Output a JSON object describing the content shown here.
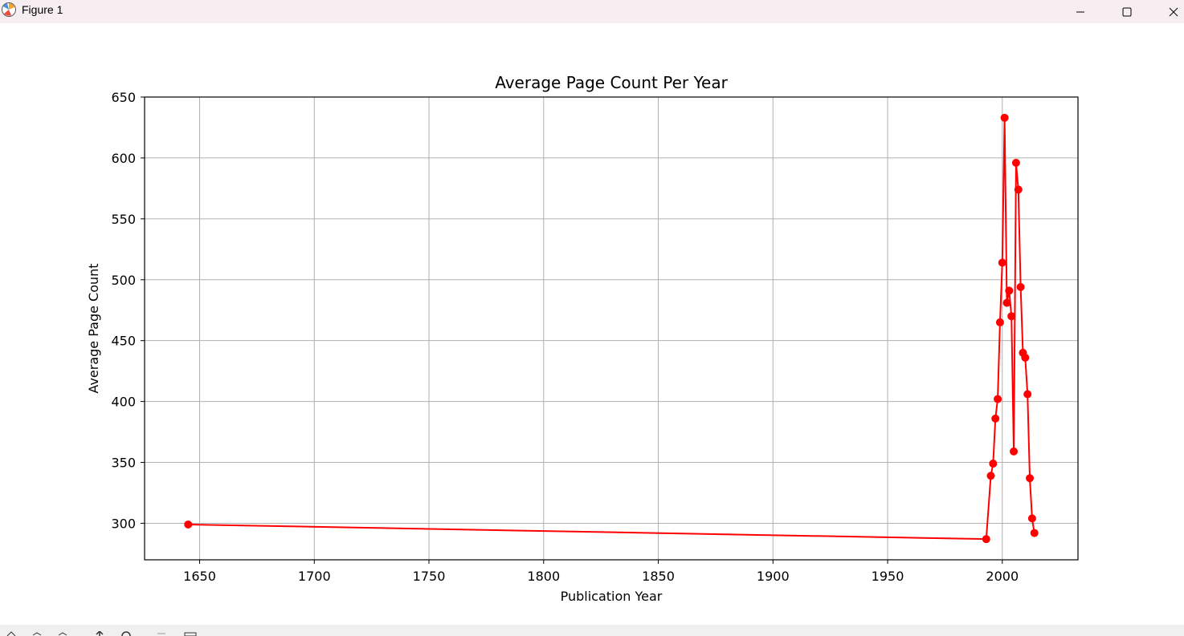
{
  "window": {
    "title": "Figure 1",
    "icons": [
      "matplotlib-icon",
      "minimize-icon",
      "maximize-icon",
      "close-icon"
    ]
  },
  "toolbar": {
    "icons": [
      "home-icon",
      "back-icon",
      "forward-icon",
      "pan-icon",
      "zoom-icon",
      "configure-icon",
      "save-icon"
    ]
  },
  "chart_data": {
    "type": "line",
    "title": "Average Page Count Per Year",
    "xlabel": "Publication Year",
    "ylabel": "Average Page Count",
    "xlim": [
      1626,
      2033
    ],
    "ylim": [
      270,
      650
    ],
    "xticks": [
      1650,
      1700,
      1750,
      1800,
      1850,
      1900,
      1950,
      2000
    ],
    "yticks": [
      300,
      350,
      400,
      450,
      500,
      550,
      600,
      650
    ],
    "grid": true,
    "color": "#ff0000",
    "marker": "circle",
    "x": [
      1645,
      1993,
      1995,
      1996,
      1997,
      1998,
      1999,
      2000,
      2001,
      2002,
      2003,
      2004,
      2005,
      2006,
      2007,
      2008,
      2009,
      2010,
      2011,
      2012,
      2013,
      2014
    ],
    "y": [
      299,
      287,
      339,
      349,
      386,
      402,
      465,
      514,
      633,
      481,
      491,
      470,
      359,
      596,
      574,
      494,
      440,
      436,
      406,
      337,
      304,
      292
    ]
  }
}
